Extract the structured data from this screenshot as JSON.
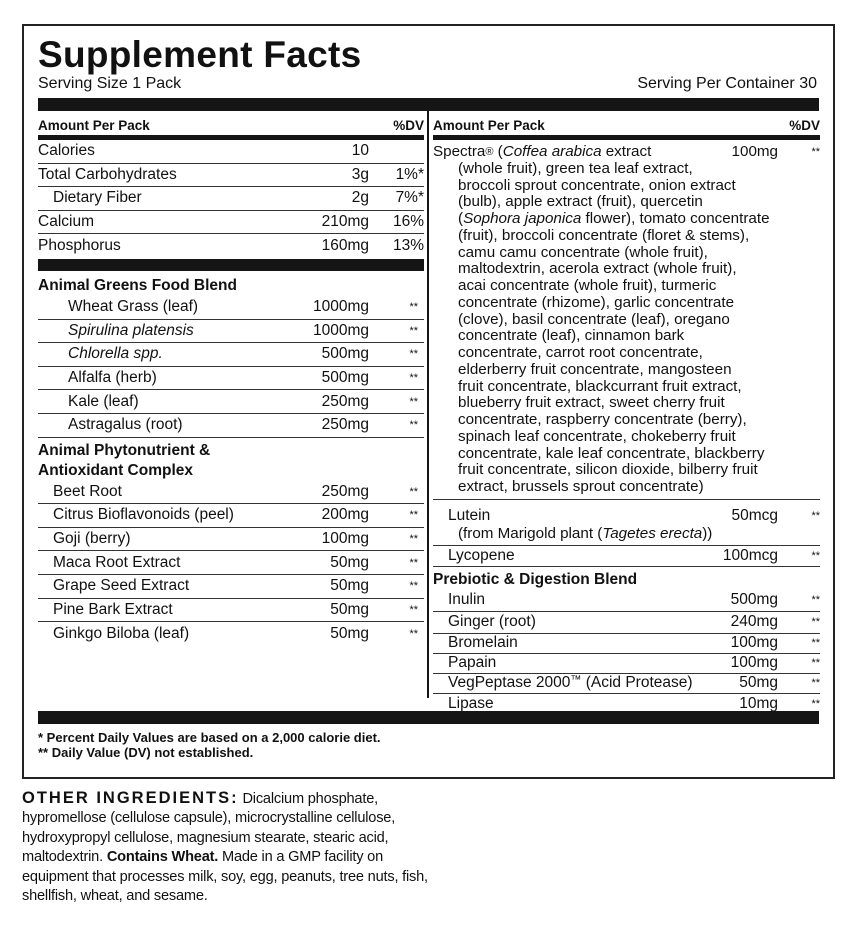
{
  "title": "Supplement Facts",
  "serving_size": "Serving Size 1 Pack",
  "servings_per_container": "Serving Per Container 30",
  "left": {
    "header": {
      "amount": "Amount Per Pack",
      "dv": "%DV"
    },
    "nutrients": [
      {
        "name": "Calories",
        "amount": "10",
        "dv": ""
      },
      {
        "name": "Total Carbohydrates",
        "amount": "3g",
        "dv": "1%*"
      },
      {
        "name": "Dietary Fiber",
        "amount": "2g",
        "dv": "7%*",
        "indent": true
      },
      {
        "name": "Calcium",
        "amount": "210mg",
        "dv": "16%"
      },
      {
        "name": "Phosphorus",
        "amount": "160mg",
        "dv": "13%"
      }
    ],
    "blend1": {
      "title": "Animal Greens Food Blend",
      "items": [
        {
          "name": "Wheat Grass (leaf)",
          "amount": "1000mg",
          "dv": "**"
        },
        {
          "name": "Spirulina platensis",
          "amount": "1000mg",
          "dv": "**",
          "italic": true
        },
        {
          "name": "Chlorella spp.",
          "amount": "500mg",
          "dv": "**",
          "italic": true
        },
        {
          "name": "Alfalfa (herb)",
          "amount": "500mg",
          "dv": "**"
        },
        {
          "name": "Kale (leaf)",
          "amount": "250mg",
          "dv": "**"
        },
        {
          "name": "Astragalus (root)",
          "amount": "250mg",
          "dv": "**"
        }
      ]
    },
    "blend2": {
      "title_line1": "Animal Phytonutrient &",
      "title_line2": "Antioxidant Complex",
      "items": [
        {
          "name": "Beet Root",
          "amount": "250mg",
          "dv": "**"
        },
        {
          "name": "Citrus Bioflavonoids (peel)",
          "amount": "200mg",
          "dv": "**"
        },
        {
          "name": "Goji (berry)",
          "amount": "100mg",
          "dv": "**"
        },
        {
          "name": "Maca Root Extract",
          "amount": "50mg",
          "dv": "**"
        },
        {
          "name": "Grape Seed Extract",
          "amount": "50mg",
          "dv": "**"
        },
        {
          "name": "Pine Bark Extract",
          "amount": "50mg",
          "dv": "**"
        },
        {
          "name": "Ginkgo Biloba (leaf)",
          "amount": "50mg",
          "dv": "**"
        }
      ]
    }
  },
  "right": {
    "header": {
      "amount": "Amount Per Pack",
      "dv": "%DV"
    },
    "spectra": {
      "name": "Spectra",
      "reg": "®",
      "amount": "100mg",
      "dv": "**",
      "first_line": [
        {
          "t": " ("
        },
        {
          "t": "Coffea arabica",
          "i": true
        },
        {
          "t": " extract"
        }
      ],
      "lines": [
        [
          {
            "t": "(whole fruit), green tea leaf extract,"
          }
        ],
        [
          {
            "t": "broccoli sprout concentrate, onion extract"
          }
        ],
        [
          {
            "t": "(bulb), apple extract (fruit), quercetin"
          }
        ],
        [
          {
            "t": "("
          },
          {
            "t": "Sophora japonica",
            "i": true
          },
          {
            "t": " flower), tomato concentrate"
          }
        ],
        [
          {
            "t": "(fruit), broccoli concentrate (floret & stems),"
          }
        ],
        [
          {
            "t": "camu camu concentrate (whole fruit),"
          }
        ],
        [
          {
            "t": "maltodextrin, acerola extract (whole fruit),"
          }
        ],
        [
          {
            "t": "acai concentrate (whole fruit), turmeric"
          }
        ],
        [
          {
            "t": "concentrate (rhizome), garlic concentrate"
          }
        ],
        [
          {
            "t": "(clove), basil concentrate (leaf), oregano"
          }
        ],
        [
          {
            "t": "concentrate (leaf), cinnamon bark"
          }
        ],
        [
          {
            "t": "concentrate, carrot root concentrate,"
          }
        ],
        [
          {
            "t": "elderberry fruit concentrate, mangosteen"
          }
        ],
        [
          {
            "t": "fruit concentrate, blackcurrant fruit extract,"
          }
        ],
        [
          {
            "t": "blueberry fruit extract, sweet cherry fruit"
          }
        ],
        [
          {
            "t": "concentrate, raspberry concentrate (berry),"
          }
        ],
        [
          {
            "t": "spinach leaf concentrate, chokeberry fruit"
          }
        ],
        [
          {
            "t": "concentrate, kale leaf concentrate, blackberry"
          }
        ],
        [
          {
            "t": "fruit concentrate, silicon dioxide, bilberry fruit"
          }
        ],
        [
          {
            "t": "extract, brussels sprout concentrate)"
          }
        ]
      ]
    },
    "lutein": {
      "name": "Lutein",
      "amount": "50mcg",
      "dv": "**",
      "source_pre": "(from Marigold plant (",
      "source_italic": "Tagetes erecta",
      "source_post": "))"
    },
    "lycopene": {
      "name": "Lycopene",
      "amount": "100mcg",
      "dv": "**"
    },
    "blend3": {
      "title": "Prebiotic & Digestion Blend",
      "items": [
        {
          "name": "Inulin",
          "amount": "500mg",
          "dv": "**"
        },
        {
          "name": "Ginger (root)",
          "amount": "240mg",
          "dv": "**"
        },
        {
          "name": "Bromelain",
          "amount": "100mg",
          "dv": "**"
        },
        {
          "name": "Papain",
          "amount": "100mg",
          "dv": "**"
        },
        {
          "name": "VegPeptase 2000",
          "tm": "™",
          "suffix": " (Acid Protease)",
          "amount": "50mg",
          "dv": "**"
        },
        {
          "name": "Lipase",
          "amount": "10mg",
          "dv": "**"
        }
      ]
    }
  },
  "footnotes": [
    "* Percent Daily Values are based on a 2,000 calorie diet.",
    "** Daily Value (DV) not established."
  ],
  "other_ingredients": {
    "heading": "OTHER INGREDIENTS:",
    "text": " Dicalcium phosphate, hypromellose (cellulose capsule), microcrystalline cellulose, hydroxypropyl cellulose, magnesium stearate, stearic acid, maltodextrin. ",
    "bold": "Contains Wheat.",
    "text2": " Made in a GMP facility on equipment that processes milk, soy, egg, peanuts, tree nuts, fish, shellfish, wheat, and sesame."
  }
}
